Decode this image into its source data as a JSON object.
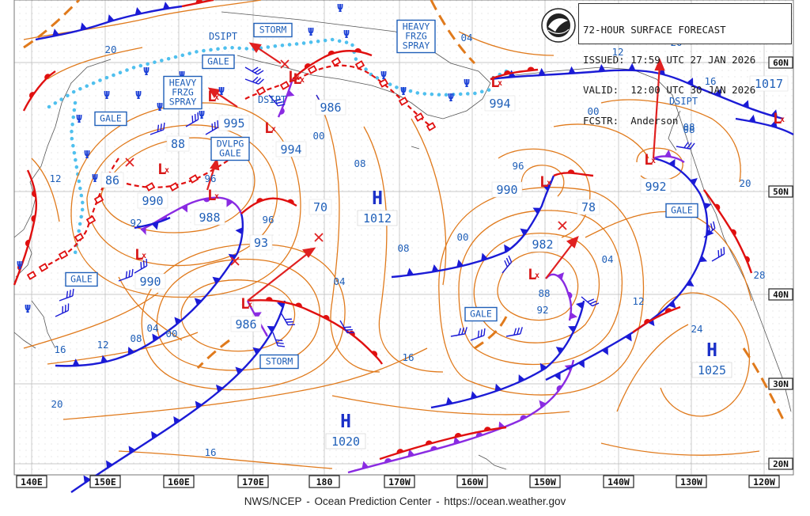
{
  "header": {
    "title": "72-HOUR SURFACE FORECAST",
    "issued": "ISSUED: 17:59 UTC 27 JAN 2026",
    "valid": "VALID:  12:00 UTC 30 JAN 2026",
    "forecaster": "FCSTR:  Anderson"
  },
  "footer": {
    "agency": "NWS/NCEP",
    "sep1": "-",
    "center": "Ocean Prediction Center",
    "sep2": "-",
    "url": "https://ocean.weather.gov"
  },
  "logo": {
    "icon": "noaa-logo"
  },
  "colors": {
    "cold_front": "#1b1bd6",
    "warm_front": "#e01010",
    "occluded_front": "#8a2be2",
    "isobar": "#e07a1c",
    "ice_edge": "#4fc0ee",
    "labels": "#1f5fb8",
    "low_center": "#d81818"
  },
  "longitude_labels": [
    "140E",
    "150E",
    "160E",
    "170E",
    "180",
    "170W",
    "160W",
    "150W",
    "140W",
    "130W",
    "120W"
  ],
  "latitude_labels": [
    "60N",
    "50N",
    "40N",
    "30N",
    "20N"
  ],
  "pressure_systems": [
    {
      "type": "H",
      "value": "1012"
    },
    {
      "type": "H",
      "value": "1020"
    },
    {
      "type": "H",
      "value": "1025"
    },
    {
      "type": "L",
      "value": "986"
    },
    {
      "type": "L",
      "value": "994"
    },
    {
      "type": "L",
      "value": "995"
    },
    {
      "type": "L",
      "value": "88"
    },
    {
      "type": "L",
      "value": "86"
    },
    {
      "type": "L",
      "value": "990"
    },
    {
      "type": "L",
      "value": "988"
    },
    {
      "type": "L",
      "value": "93"
    },
    {
      "type": "L",
      "value": "990"
    },
    {
      "type": "L",
      "value": "986"
    },
    {
      "type": "L",
      "value": "70"
    },
    {
      "type": "L",
      "value": "994"
    },
    {
      "type": "L",
      "value": "990"
    },
    {
      "type": "L",
      "value": "78"
    },
    {
      "type": "L",
      "value": "982"
    },
    {
      "type": "L",
      "value": "992"
    },
    {
      "type": "H",
      "value": "1017"
    }
  ],
  "warning_boxes": [
    {
      "text": "STORM"
    },
    {
      "text": "GALE"
    },
    {
      "lines": [
        "HEAVY",
        "FRZG",
        "SPRAY"
      ]
    },
    {
      "lines": [
        "HEAVY",
        "FRZG",
        "SPRAY"
      ]
    },
    {
      "text": "GALE"
    },
    {
      "lines": [
        "DVLPG",
        "GALE"
      ]
    },
    {
      "text": "GALE"
    },
    {
      "text": "STORM"
    },
    {
      "text": "GALE"
    },
    {
      "text": "GALE"
    }
  ],
  "plain_labels": [
    "DSIPT",
    "DSIPT",
    "DSIPT"
  ],
  "isobar_labels": [
    "20",
    "12",
    "92",
    "96",
    "04",
    "16",
    "12",
    "08",
    "00",
    "96",
    "00",
    "08",
    "04",
    "08",
    "96",
    "00",
    "04",
    "12",
    "16",
    "08",
    "88",
    "92",
    "12",
    "16",
    "20",
    "24",
    "28",
    "00",
    "08",
    "20",
    "20",
    "16",
    "04"
  ]
}
